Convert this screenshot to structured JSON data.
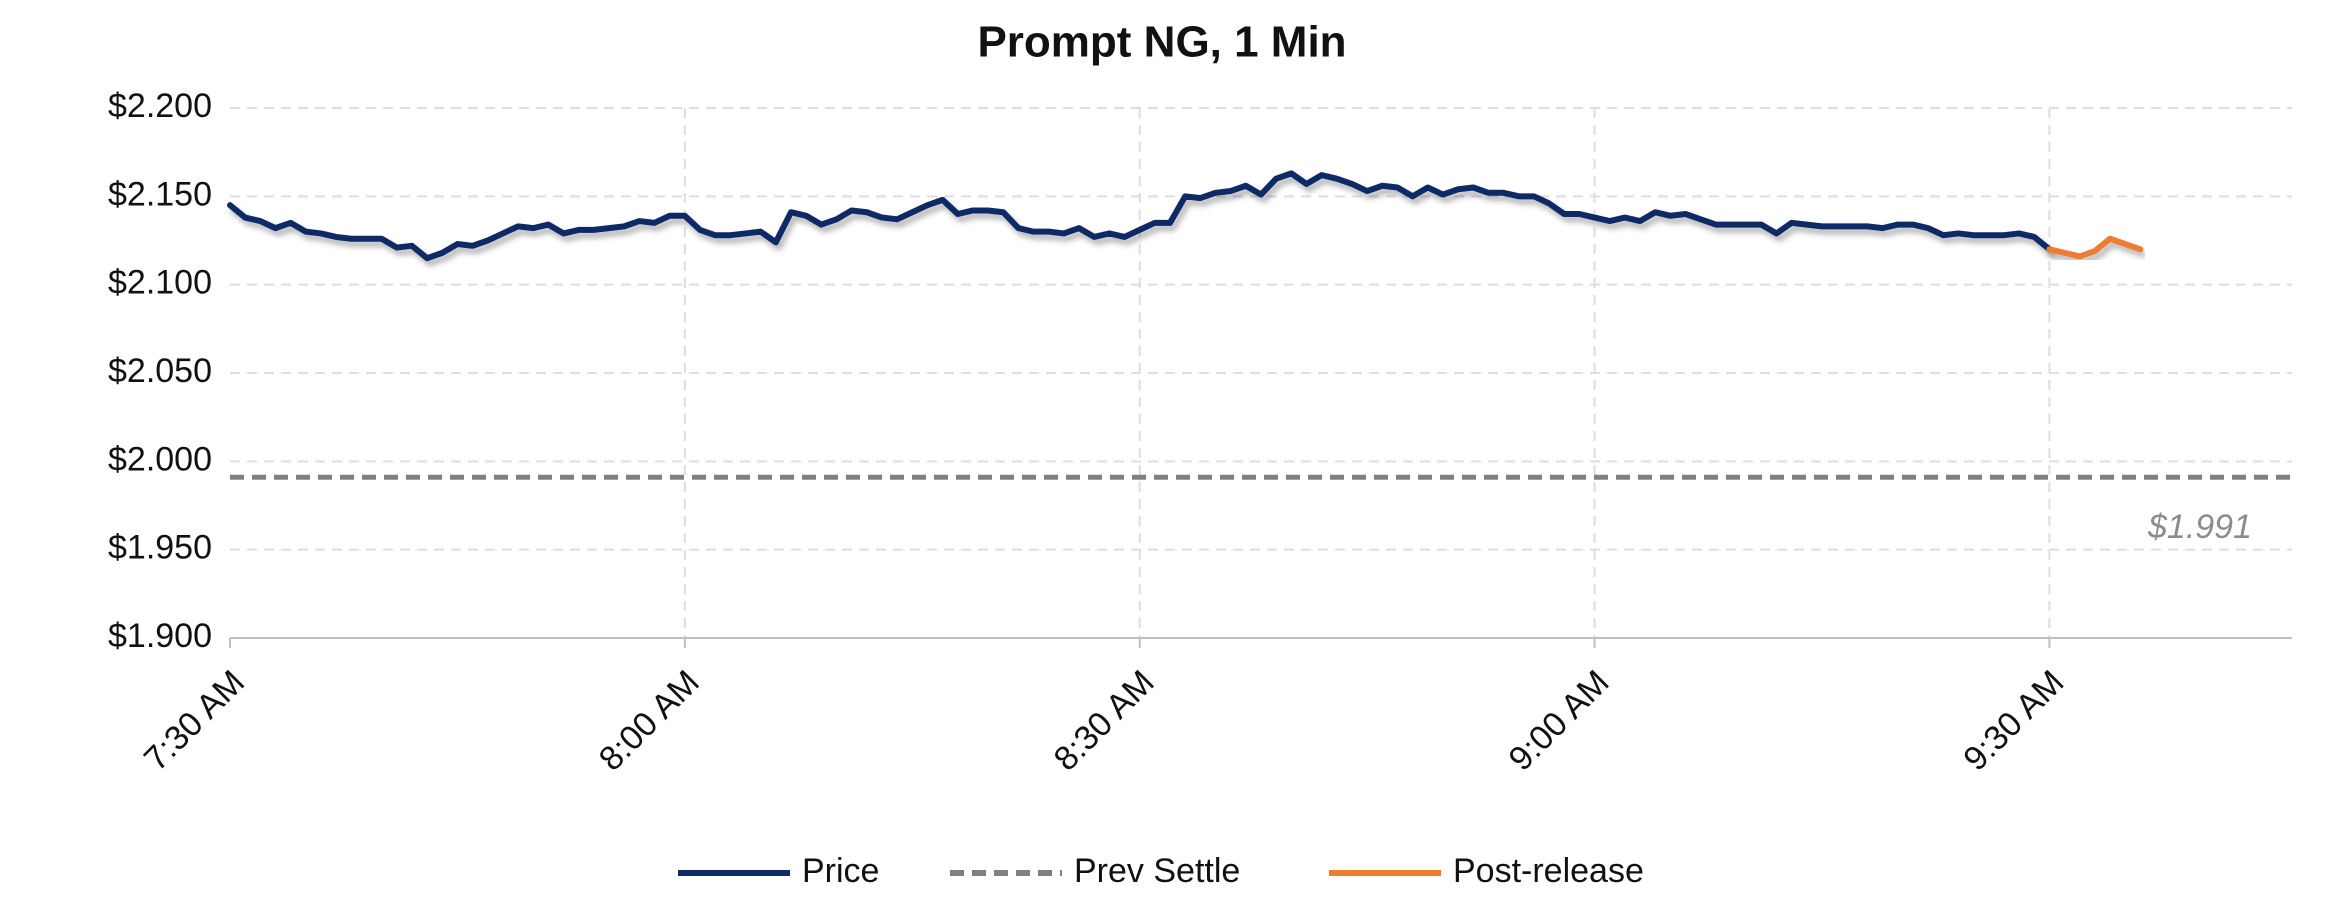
{
  "chart_data": {
    "type": "line",
    "title": "Prompt NG, 1 Min",
    "xlim": [
      0,
      136
    ],
    "xticks": [
      {
        "value": 0,
        "label": "7:30 AM"
      },
      {
        "value": 30,
        "label": "8:00 AM"
      },
      {
        "value": 60,
        "label": "8:30 AM"
      },
      {
        "value": 90,
        "label": "9:00 AM"
      },
      {
        "value": 120,
        "label": "9:30 AM"
      }
    ],
    "ylim": [
      1.9,
      2.2
    ],
    "yticks": [
      {
        "value": 1.9,
        "label": "$1.900"
      },
      {
        "value": 1.95,
        "label": "$1.950"
      },
      {
        "value": 2.0,
        "label": "$2.000"
      },
      {
        "value": 2.05,
        "label": "$2.050"
      },
      {
        "value": 2.1,
        "label": "$2.100"
      },
      {
        "value": 2.15,
        "label": "$2.150"
      },
      {
        "value": 2.2,
        "label": "$2.200"
      }
    ],
    "grid": true,
    "legend": "bottom",
    "series": [
      {
        "name": "Price",
        "color": "#0f2a66",
        "x": [
          0,
          1,
          2,
          3,
          4,
          5,
          6,
          7,
          8,
          9,
          10,
          11,
          12,
          13,
          14,
          15,
          16,
          17,
          18,
          19,
          20,
          21,
          22,
          23,
          24,
          25,
          26,
          27,
          28,
          29,
          30,
          31,
          32,
          33,
          34,
          35,
          36,
          37,
          38,
          39,
          40,
          41,
          42,
          43,
          44,
          45,
          46,
          47,
          48,
          49,
          50,
          51,
          52,
          53,
          54,
          55,
          56,
          57,
          58,
          59,
          60,
          61,
          62,
          63,
          64,
          65,
          66,
          67,
          68,
          69,
          70,
          71,
          72,
          73,
          74,
          75,
          76,
          77,
          78,
          79,
          80,
          81,
          82,
          83,
          84,
          85,
          86,
          87,
          88,
          89,
          90,
          91,
          92,
          93,
          94,
          95,
          96,
          97,
          98,
          99,
          100,
          101,
          102,
          103,
          104,
          105,
          106,
          107,
          108,
          109,
          110,
          111,
          112,
          113,
          114,
          115,
          116,
          117,
          118,
          119,
          120
        ],
        "values": [
          2.145,
          2.138,
          2.136,
          2.132,
          2.135,
          2.13,
          2.129,
          2.127,
          2.126,
          2.126,
          2.126,
          2.121,
          2.122,
          2.115,
          2.118,
          2.123,
          2.122,
          2.125,
          2.129,
          2.133,
          2.132,
          2.134,
          2.129,
          2.131,
          2.131,
          2.132,
          2.133,
          2.136,
          2.135,
          2.139,
          2.139,
          2.131,
          2.128,
          2.128,
          2.129,
          2.13,
          2.124,
          2.141,
          2.139,
          2.134,
          2.137,
          2.142,
          2.141,
          2.138,
          2.137,
          2.141,
          2.145,
          2.148,
          2.14,
          2.142,
          2.142,
          2.141,
          2.132,
          2.13,
          2.13,
          2.129,
          2.132,
          2.127,
          2.129,
          2.127,
          2.131,
          2.135,
          2.135,
          2.15,
          2.149,
          2.152,
          2.153,
          2.156,
          2.151,
          2.16,
          2.163,
          2.157,
          2.162,
          2.16,
          2.157,
          2.153,
          2.156,
          2.155,
          2.15,
          2.155,
          2.151,
          2.154,
          2.155,
          2.152,
          2.152,
          2.15,
          2.15,
          2.146,
          2.14,
          2.14,
          2.138,
          2.136,
          2.138,
          2.136,
          2.141,
          2.139,
          2.14,
          2.137,
          2.134,
          2.134,
          2.134,
          2.134,
          2.129,
          2.135,
          2.134,
          2.133,
          2.133,
          2.133,
          2.133,
          2.132,
          2.134,
          2.134,
          2.132,
          2.128,
          2.129,
          2.128,
          2.128,
          2.128,
          2.129,
          2.127,
          2.12
        ]
      },
      {
        "name": "Prev Settle",
        "color": "#808080",
        "dashed": true,
        "values": [
          1.991
        ],
        "value_labels": [
          "$1.991"
        ]
      },
      {
        "name": "Post-release",
        "color": "#ed7d31",
        "x": [
          120,
          121,
          122,
          123,
          124,
          125,
          126
        ],
        "values": [
          2.12,
          2.118,
          2.116,
          2.119,
          2.126,
          2.123,
          2.12
        ]
      }
    ]
  }
}
